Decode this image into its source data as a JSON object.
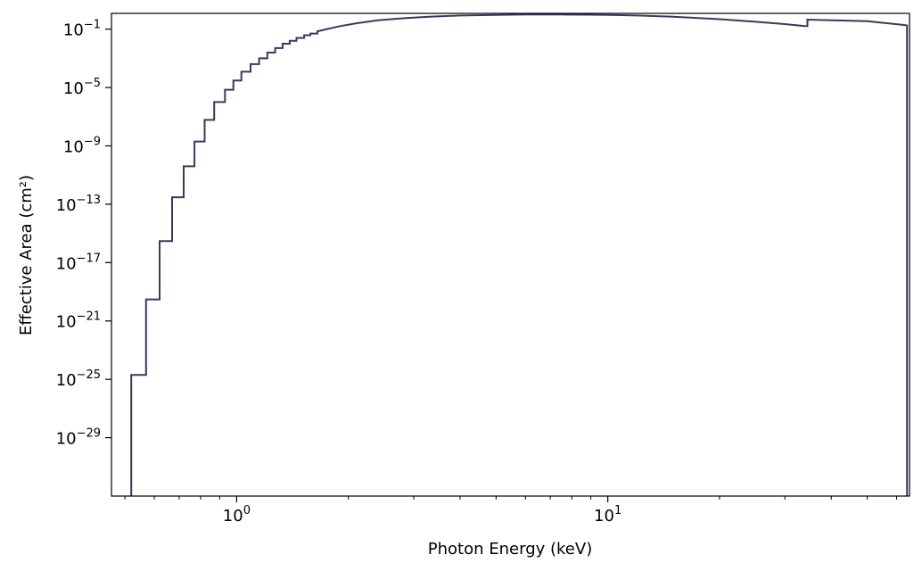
{
  "chart_data": {
    "type": "line",
    "title": "",
    "xlabel": "Photon Energy (keV)",
    "ylabel": "Effective Area (cm²)",
    "xscale": "log",
    "yscale": "log",
    "xlim": [
      0.46,
      65
    ],
    "ylim": [
      1e-33,
      1.2
    ],
    "grid": false,
    "legend": "none",
    "line_color": "#343c5a",
    "x_ticks": [
      {
        "value": 1,
        "base": "10",
        "exp": "0"
      },
      {
        "value": 10,
        "base": "10",
        "exp": "1"
      }
    ],
    "y_ticks": [
      {
        "value": 0.1,
        "base": "10",
        "exp": "−1"
      },
      {
        "value": 1e-05,
        "base": "10",
        "exp": "−5"
      },
      {
        "value": 1e-09,
        "base": "10",
        "exp": "−9"
      },
      {
        "value": 1e-13,
        "base": "10",
        "exp": "−13"
      },
      {
        "value": 1e-17,
        "base": "10",
        "exp": "−17"
      },
      {
        "value": 1e-21,
        "base": "10",
        "exp": "−21"
      },
      {
        "value": 1e-25,
        "base": "10",
        "exp": "−25"
      },
      {
        "value": 1e-29,
        "base": "10",
        "exp": "−29"
      }
    ],
    "series": [
      {
        "x": [
          0.52,
          0.52,
          0.57,
          0.57,
          0.62,
          0.62,
          0.67,
          0.67,
          0.72,
          0.72,
          0.77,
          0.77,
          0.82,
          0.82,
          0.87,
          0.87,
          0.93,
          0.93,
          0.98,
          0.98,
          1.03,
          1.03,
          1.09,
          1.09,
          1.15,
          1.15,
          1.21,
          1.21,
          1.27,
          1.27,
          1.33,
          1.33,
          1.39,
          1.39,
          1.45,
          1.45,
          1.52,
          1.52,
          1.58,
          1.58,
          1.65,
          1.65,
          1.75,
          1.9,
          2.1,
          2.4,
          2.8,
          3.3,
          4.0,
          5.0,
          6.0,
          7.5,
          9.0,
          10.5,
          12.0,
          15.0,
          20.0,
          25.0,
          30.0,
          34.0,
          34.5,
          34.5,
          50.0,
          62.0,
          64.0,
          64.0
        ],
        "y": [
          1e-33,
          2e-25,
          2e-25,
          3e-20,
          3e-20,
          3e-16,
          3e-16,
          3e-13,
          3e-13,
          4e-11,
          4e-11,
          2e-09,
          2e-09,
          6e-08,
          6e-08,
          1e-06,
          1e-06,
          7e-06,
          7e-06,
          3e-05,
          3e-05,
          0.00012,
          0.00012,
          0.0004,
          0.0004,
          0.001,
          0.001,
          0.0025,
          0.0025,
          0.005,
          0.005,
          0.01,
          0.01,
          0.016,
          0.016,
          0.025,
          0.025,
          0.038,
          0.038,
          0.05,
          0.05,
          0.07,
          0.1,
          0.16,
          0.25,
          0.4,
          0.55,
          0.7,
          0.85,
          0.95,
          1.0,
          1.0,
          0.97,
          0.92,
          0.85,
          0.7,
          0.48,
          0.32,
          0.22,
          0.16,
          0.16,
          0.45,
          0.35,
          0.2,
          0.18,
          1e-33
        ]
      }
    ]
  }
}
